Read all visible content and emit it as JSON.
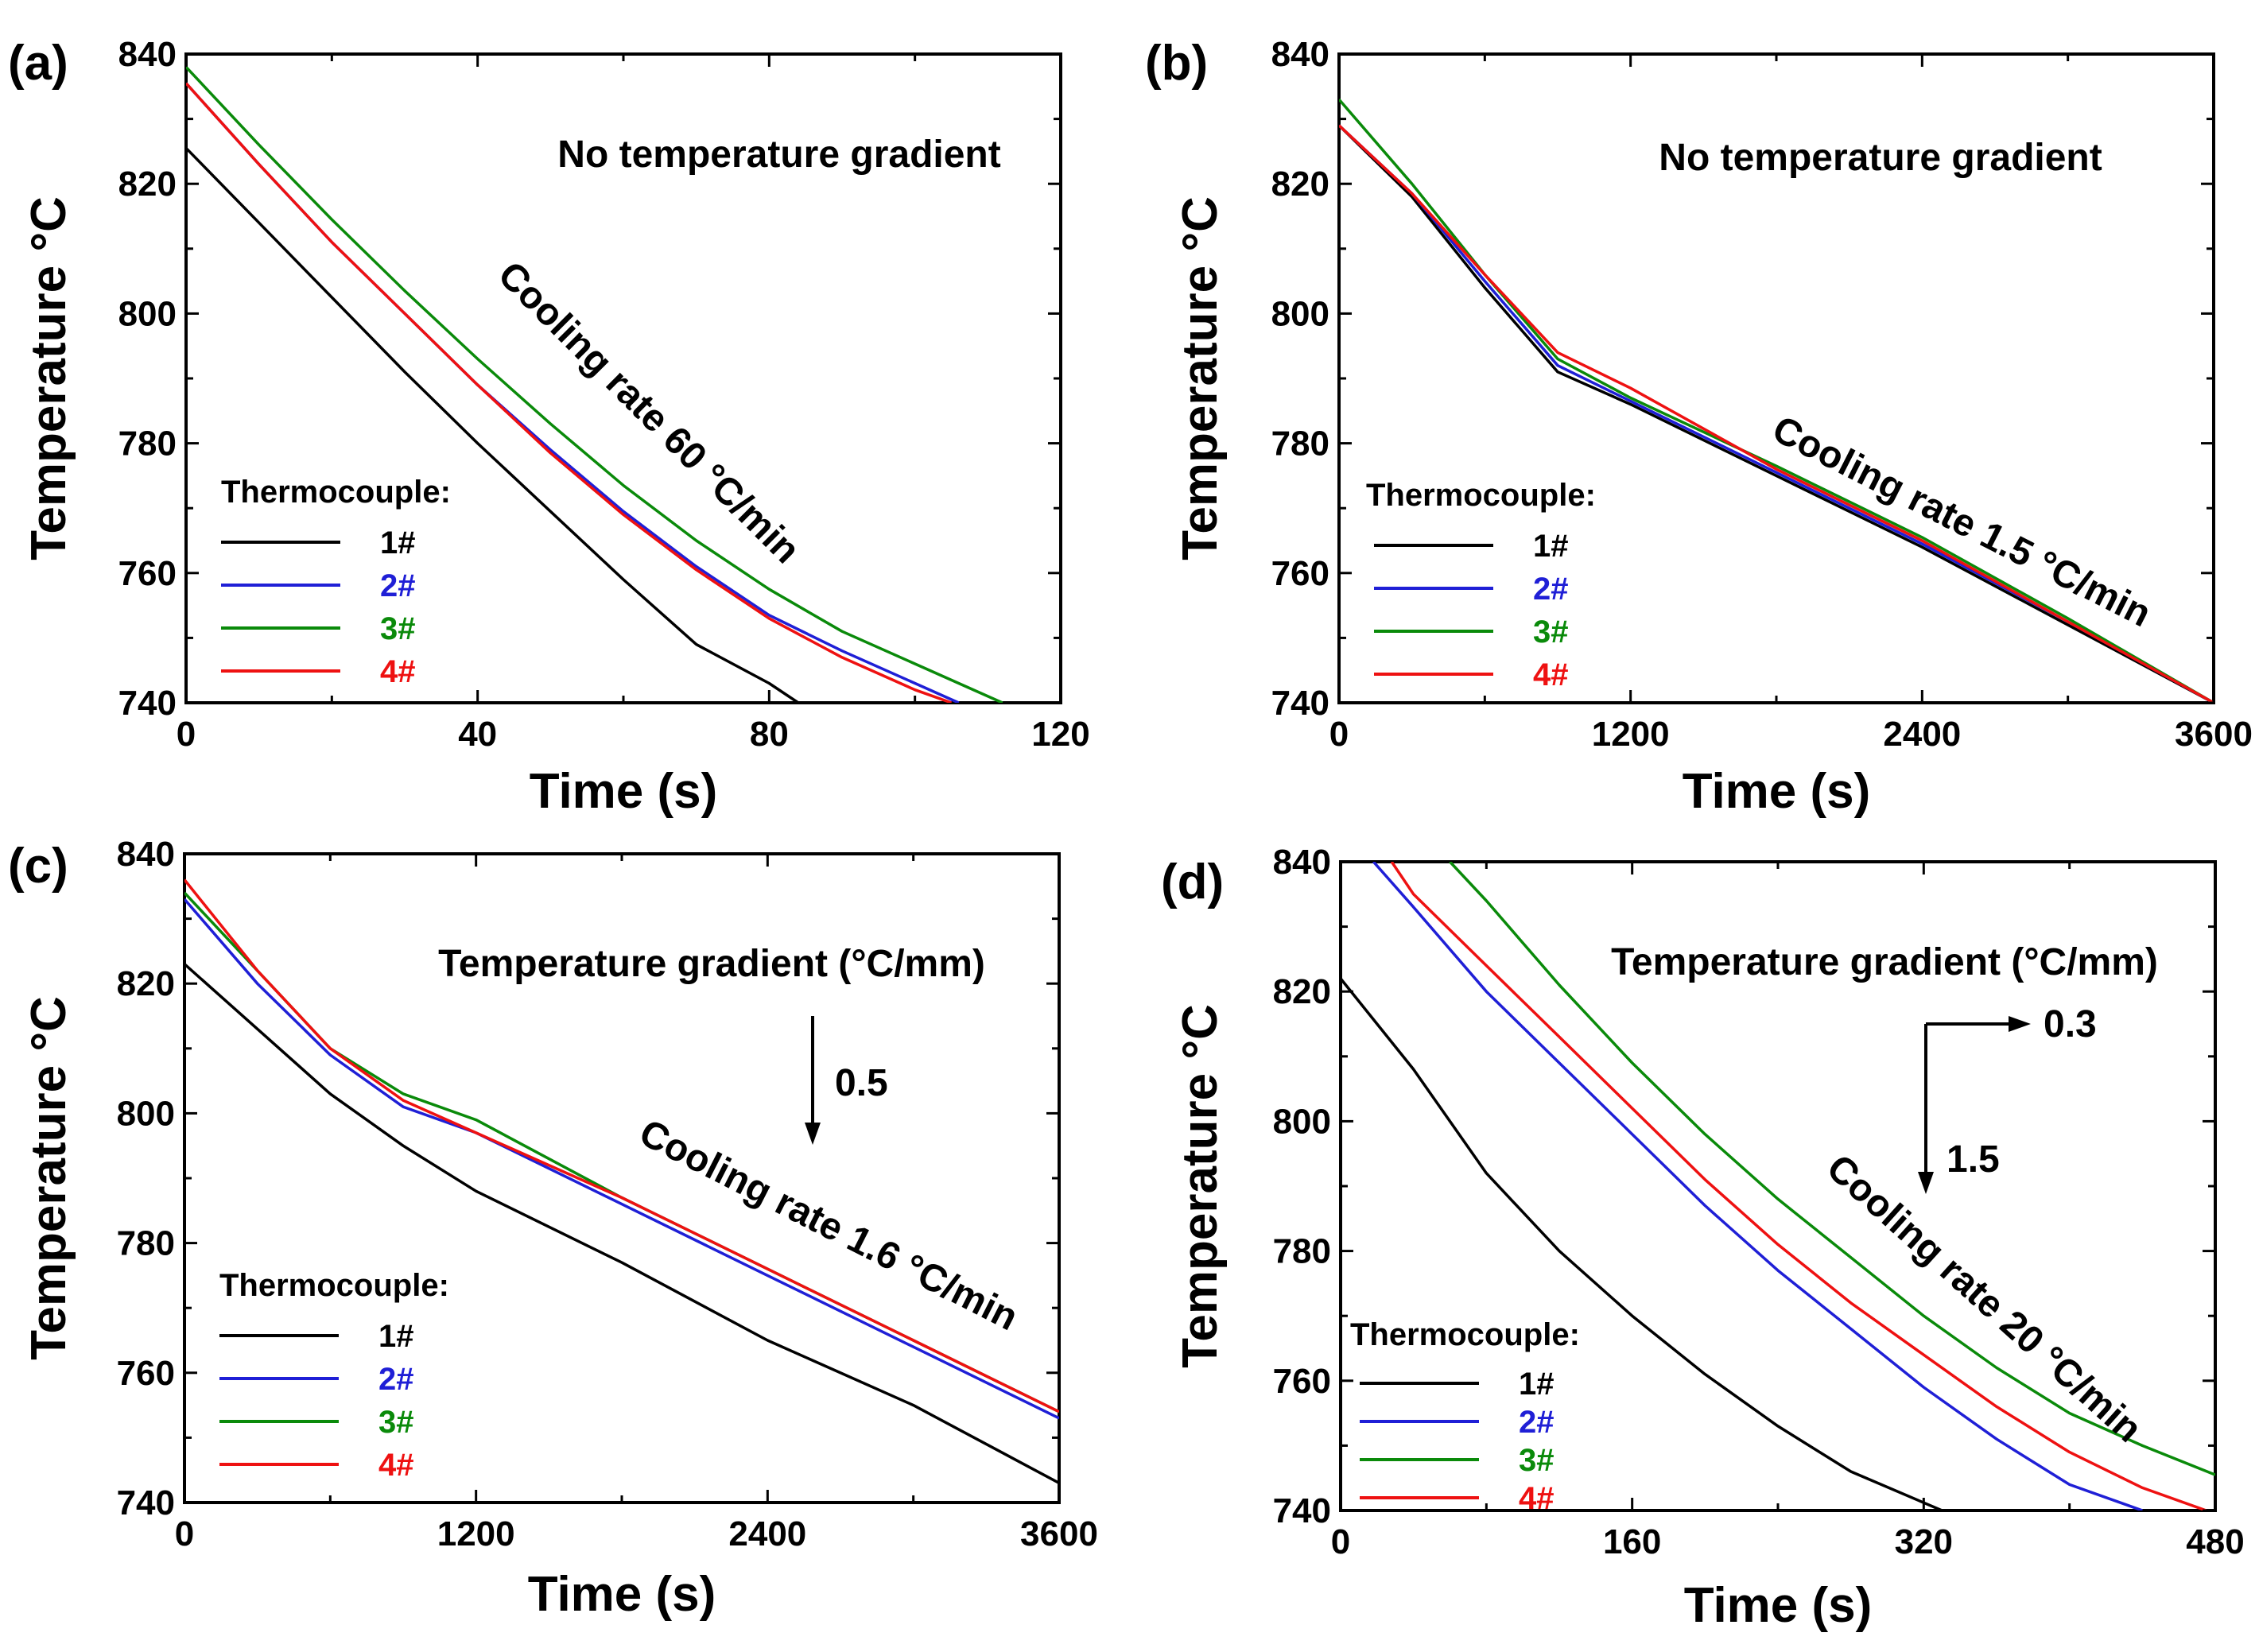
{
  "colors": {
    "tc1": "#000000",
    "tc2": "#1f1fd6",
    "tc3": "#0a8a0a",
    "tc4": "#ee1111"
  },
  "chart_data": [
    {
      "panel": "(a)",
      "type": "line",
      "xlabel": "Time (s)",
      "ylabel": "Temperature °C",
      "xlim": [
        0,
        120
      ],
      "ylim": [
        740,
        840
      ],
      "xticks": [
        "0",
        "40",
        "80",
        "120"
      ],
      "yticks": [
        "740",
        "760",
        "780",
        "800",
        "820",
        "840"
      ],
      "annotations": [
        "No temperature gradient",
        "Cooling rate 60 °C/min"
      ],
      "legend_title": "Thermocouple:",
      "series": [
        {
          "name": "1#",
          "x": [
            0,
            10,
            20,
            30,
            40,
            50,
            60,
            70,
            80,
            84
          ],
          "y": [
            825.5,
            814,
            802.5,
            791,
            780,
            769.5,
            759,
            749,
            743,
            740
          ]
        },
        {
          "name": "2#",
          "x": [
            0,
            10,
            20,
            30,
            40,
            50,
            60,
            70,
            80,
            90,
            100,
            106
          ],
          "y": [
            835.5,
            823,
            811,
            800,
            789,
            779,
            769.5,
            761,
            753.5,
            748,
            743,
            740
          ]
        },
        {
          "name": "3#",
          "x": [
            0,
            10,
            20,
            30,
            40,
            50,
            60,
            70,
            80,
            90,
            100,
            112
          ],
          "y": [
            838,
            826,
            814.5,
            803.5,
            793,
            783,
            773.5,
            765,
            757.5,
            751,
            746,
            740
          ]
        },
        {
          "name": "4#",
          "x": [
            0,
            10,
            20,
            30,
            40,
            50,
            60,
            70,
            80,
            90,
            100,
            105
          ],
          "y": [
            835.5,
            823,
            811,
            800,
            789,
            778.5,
            769,
            760.5,
            753,
            747,
            742,
            740
          ]
        }
      ]
    },
    {
      "panel": "(b)",
      "type": "line",
      "xlabel": "Time (s)",
      "ylabel": "Temperature °C",
      "xlim": [
        0,
        3600
      ],
      "ylim": [
        740,
        840
      ],
      "xticks": [
        "0",
        "1200",
        "2400",
        "3600"
      ],
      "yticks": [
        "740",
        "760",
        "780",
        "800",
        "820",
        "840"
      ],
      "annotations": [
        "No temperature gradient",
        "Cooling rate 1.5 °C/min"
      ],
      "legend_title": "Thermocouple:",
      "series": [
        {
          "name": "1#",
          "x": [
            0,
            300,
            600,
            900,
            1200,
            1800,
            2400,
            3000,
            3600
          ],
          "y": [
            829,
            818,
            804,
            791,
            786,
            775,
            764,
            752,
            740
          ]
        },
        {
          "name": "2#",
          "x": [
            0,
            300,
            600,
            900,
            1200,
            1800,
            2400,
            3000,
            3600
          ],
          "y": [
            829,
            818.5,
            805,
            792,
            786.5,
            775.5,
            764.5,
            752.5,
            740
          ]
        },
        {
          "name": "3#",
          "x": [
            0,
            300,
            600,
            900,
            1200,
            1800,
            2400,
            3000,
            3600
          ],
          "y": [
            833,
            820,
            806,
            793,
            787,
            776.5,
            765.5,
            753,
            740
          ]
        },
        {
          "name": "4#",
          "x": [
            0,
            300,
            600,
            900,
            1200,
            1800,
            2400,
            3000,
            3600
          ],
          "y": [
            829,
            818.5,
            806,
            794,
            788.5,
            776,
            765,
            752.5,
            740
          ]
        }
      ]
    },
    {
      "panel": "(c)",
      "type": "line",
      "xlabel": "Time (s)",
      "ylabel": "Temperature °C",
      "xlim": [
        0,
        3600
      ],
      "ylim": [
        740,
        840
      ],
      "xticks": [
        "0",
        "1200",
        "2400",
        "3600"
      ],
      "yticks": [
        "740",
        "760",
        "780",
        "800",
        "820",
        "840"
      ],
      "annotations": [
        "Temperature gradient (°C/mm)",
        "0.5",
        "Cooling rate 1.6 °C/min"
      ],
      "legend_title": "Thermocouple:",
      "series": [
        {
          "name": "1#",
          "x": [
            0,
            300,
            600,
            900,
            1200,
            1800,
            2400,
            3000,
            3600
          ],
          "y": [
            823,
            813,
            803,
            795,
            788,
            777,
            765,
            755,
            743
          ]
        },
        {
          "name": "2#",
          "x": [
            0,
            300,
            600,
            900,
            1200,
            1800,
            2400,
            3000,
            3600
          ],
          "y": [
            833,
            820,
            809,
            801,
            797,
            786,
            775,
            764,
            753
          ]
        },
        {
          "name": "3#",
          "x": [
            0,
            300,
            600,
            900,
            1200,
            1800,
            2400,
            3000,
            3600
          ],
          "y": [
            834,
            822,
            810,
            803,
            799,
            787,
            776,
            765,
            754
          ]
        },
        {
          "name": "4#",
          "x": [
            0,
            300,
            600,
            900,
            1200,
            1800,
            2400,
            3000,
            3600
          ],
          "y": [
            836,
            822,
            810,
            802,
            797,
            787,
            776,
            765,
            754
          ]
        }
      ]
    },
    {
      "panel": "(d)",
      "type": "line",
      "xlabel": "Time (s)",
      "ylabel": "Temperature °C",
      "xlim": [
        0,
        480
      ],
      "ylim": [
        740,
        840
      ],
      "xticks": [
        "0",
        "160",
        "320",
        "480"
      ],
      "yticks": [
        "740",
        "760",
        "780",
        "800",
        "820",
        "840"
      ],
      "annotations": [
        "Temperature gradient (°C/mm)",
        "0.3",
        "1.5",
        "Cooling rate 20 °C/min"
      ],
      "legend_title": "Thermocouple:",
      "series": [
        {
          "name": "1#",
          "x": [
            0,
            40,
            80,
            120,
            160,
            200,
            240,
            280,
            330
          ],
          "y": [
            822,
            808,
            792,
            780,
            770,
            761,
            753,
            746,
            740
          ]
        },
        {
          "name": "2#",
          "x": [
            18,
            40,
            80,
            120,
            160,
            200,
            240,
            280,
            320,
            360,
            400,
            440
          ],
          "y": [
            840,
            833,
            820,
            809,
            798,
            787,
            777,
            768,
            759,
            751,
            744,
            740
          ]
        },
        {
          "name": "3#",
          "x": [
            60,
            80,
            120,
            160,
            200,
            240,
            280,
            320,
            360,
            400,
            440,
            480
          ],
          "y": [
            840,
            834,
            821,
            809,
            798,
            788,
            779,
            770,
            762,
            755,
            750,
            745.5
          ]
        },
        {
          "name": "4#",
          "x": [
            28,
            40,
            80,
            120,
            160,
            200,
            240,
            280,
            320,
            360,
            400,
            440,
            475
          ],
          "y": [
            840,
            835,
            824,
            813,
            802,
            791,
            781,
            772,
            764,
            756,
            749,
            743.5,
            740
          ]
        }
      ]
    }
  ]
}
